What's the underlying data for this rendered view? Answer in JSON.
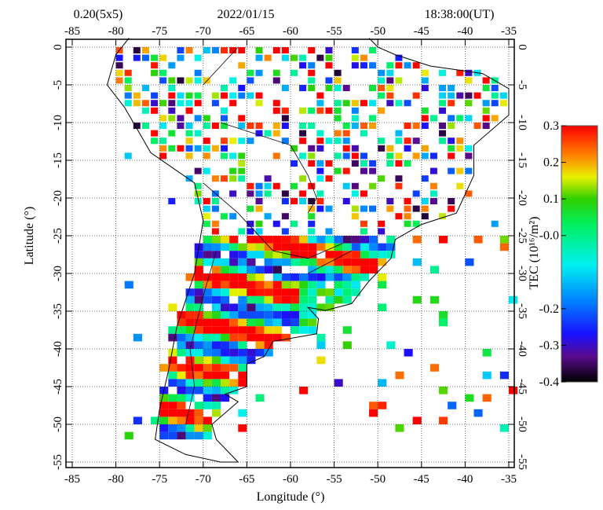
{
  "header": {
    "resolution": "0.20(5x5)",
    "date": "2022/01/15",
    "time": "18:38:00(UT)"
  },
  "axes": {
    "xlabel": "Longitude (°)",
    "ylabel": "Latitude (°)",
    "lon_ticks": [
      "-85",
      "-80",
      "-75",
      "-70",
      "-65",
      "-60",
      "-55",
      "-50",
      "-45",
      "-40",
      "-35"
    ],
    "lat_ticks": [
      "0",
      "-5",
      "-10",
      "-15",
      "-20",
      "-25",
      "-30",
      "-35",
      "-40",
      "-45",
      "-50",
      "-55"
    ],
    "lon_range": [
      -85.7,
      -34.3
    ],
    "lat_range": [
      -55.7,
      1.2
    ]
  },
  "colorbar": {
    "label": "TEC (10¹⁶/m²)",
    "ticks": [
      "0.3",
      "0.2",
      "0.1",
      "-0.0",
      "-0.2",
      "-0.3",
      "-0.4"
    ],
    "tick_values": [
      0.3,
      0.2,
      0.1,
      0.0,
      -0.2,
      -0.3,
      -0.4
    ],
    "range": [
      -0.4,
      0.3
    ],
    "stops": [
      {
        "v": -0.4,
        "c": "#000000"
      },
      {
        "v": -0.33,
        "c": "#5a0a8c"
      },
      {
        "v": -0.27,
        "c": "#1a10ff"
      },
      {
        "v": -0.18,
        "c": "#0080ff"
      },
      {
        "v": -0.08,
        "c": "#00f0f0"
      },
      {
        "v": 0.03,
        "c": "#00f060"
      },
      {
        "v": 0.1,
        "c": "#30d000"
      },
      {
        "v": 0.16,
        "c": "#e8f000"
      },
      {
        "v": 0.22,
        "c": "#ff8000"
      },
      {
        "v": 0.3,
        "c": "#ff0000"
      }
    ]
  },
  "chart_data": {
    "type": "heatmap",
    "title": "0.20(5x5) 2022/01/15 18:38:00(UT)",
    "xlabel": "Longitude (°)",
    "ylabel": "Latitude (°)",
    "xlim": [
      -85,
      -35
    ],
    "ylim": [
      -55,
      0
    ],
    "grid": true,
    "colorbar_label": "TEC (10¹⁶/m²)",
    "vlim": [
      -0.4,
      0.3
    ]
  }
}
